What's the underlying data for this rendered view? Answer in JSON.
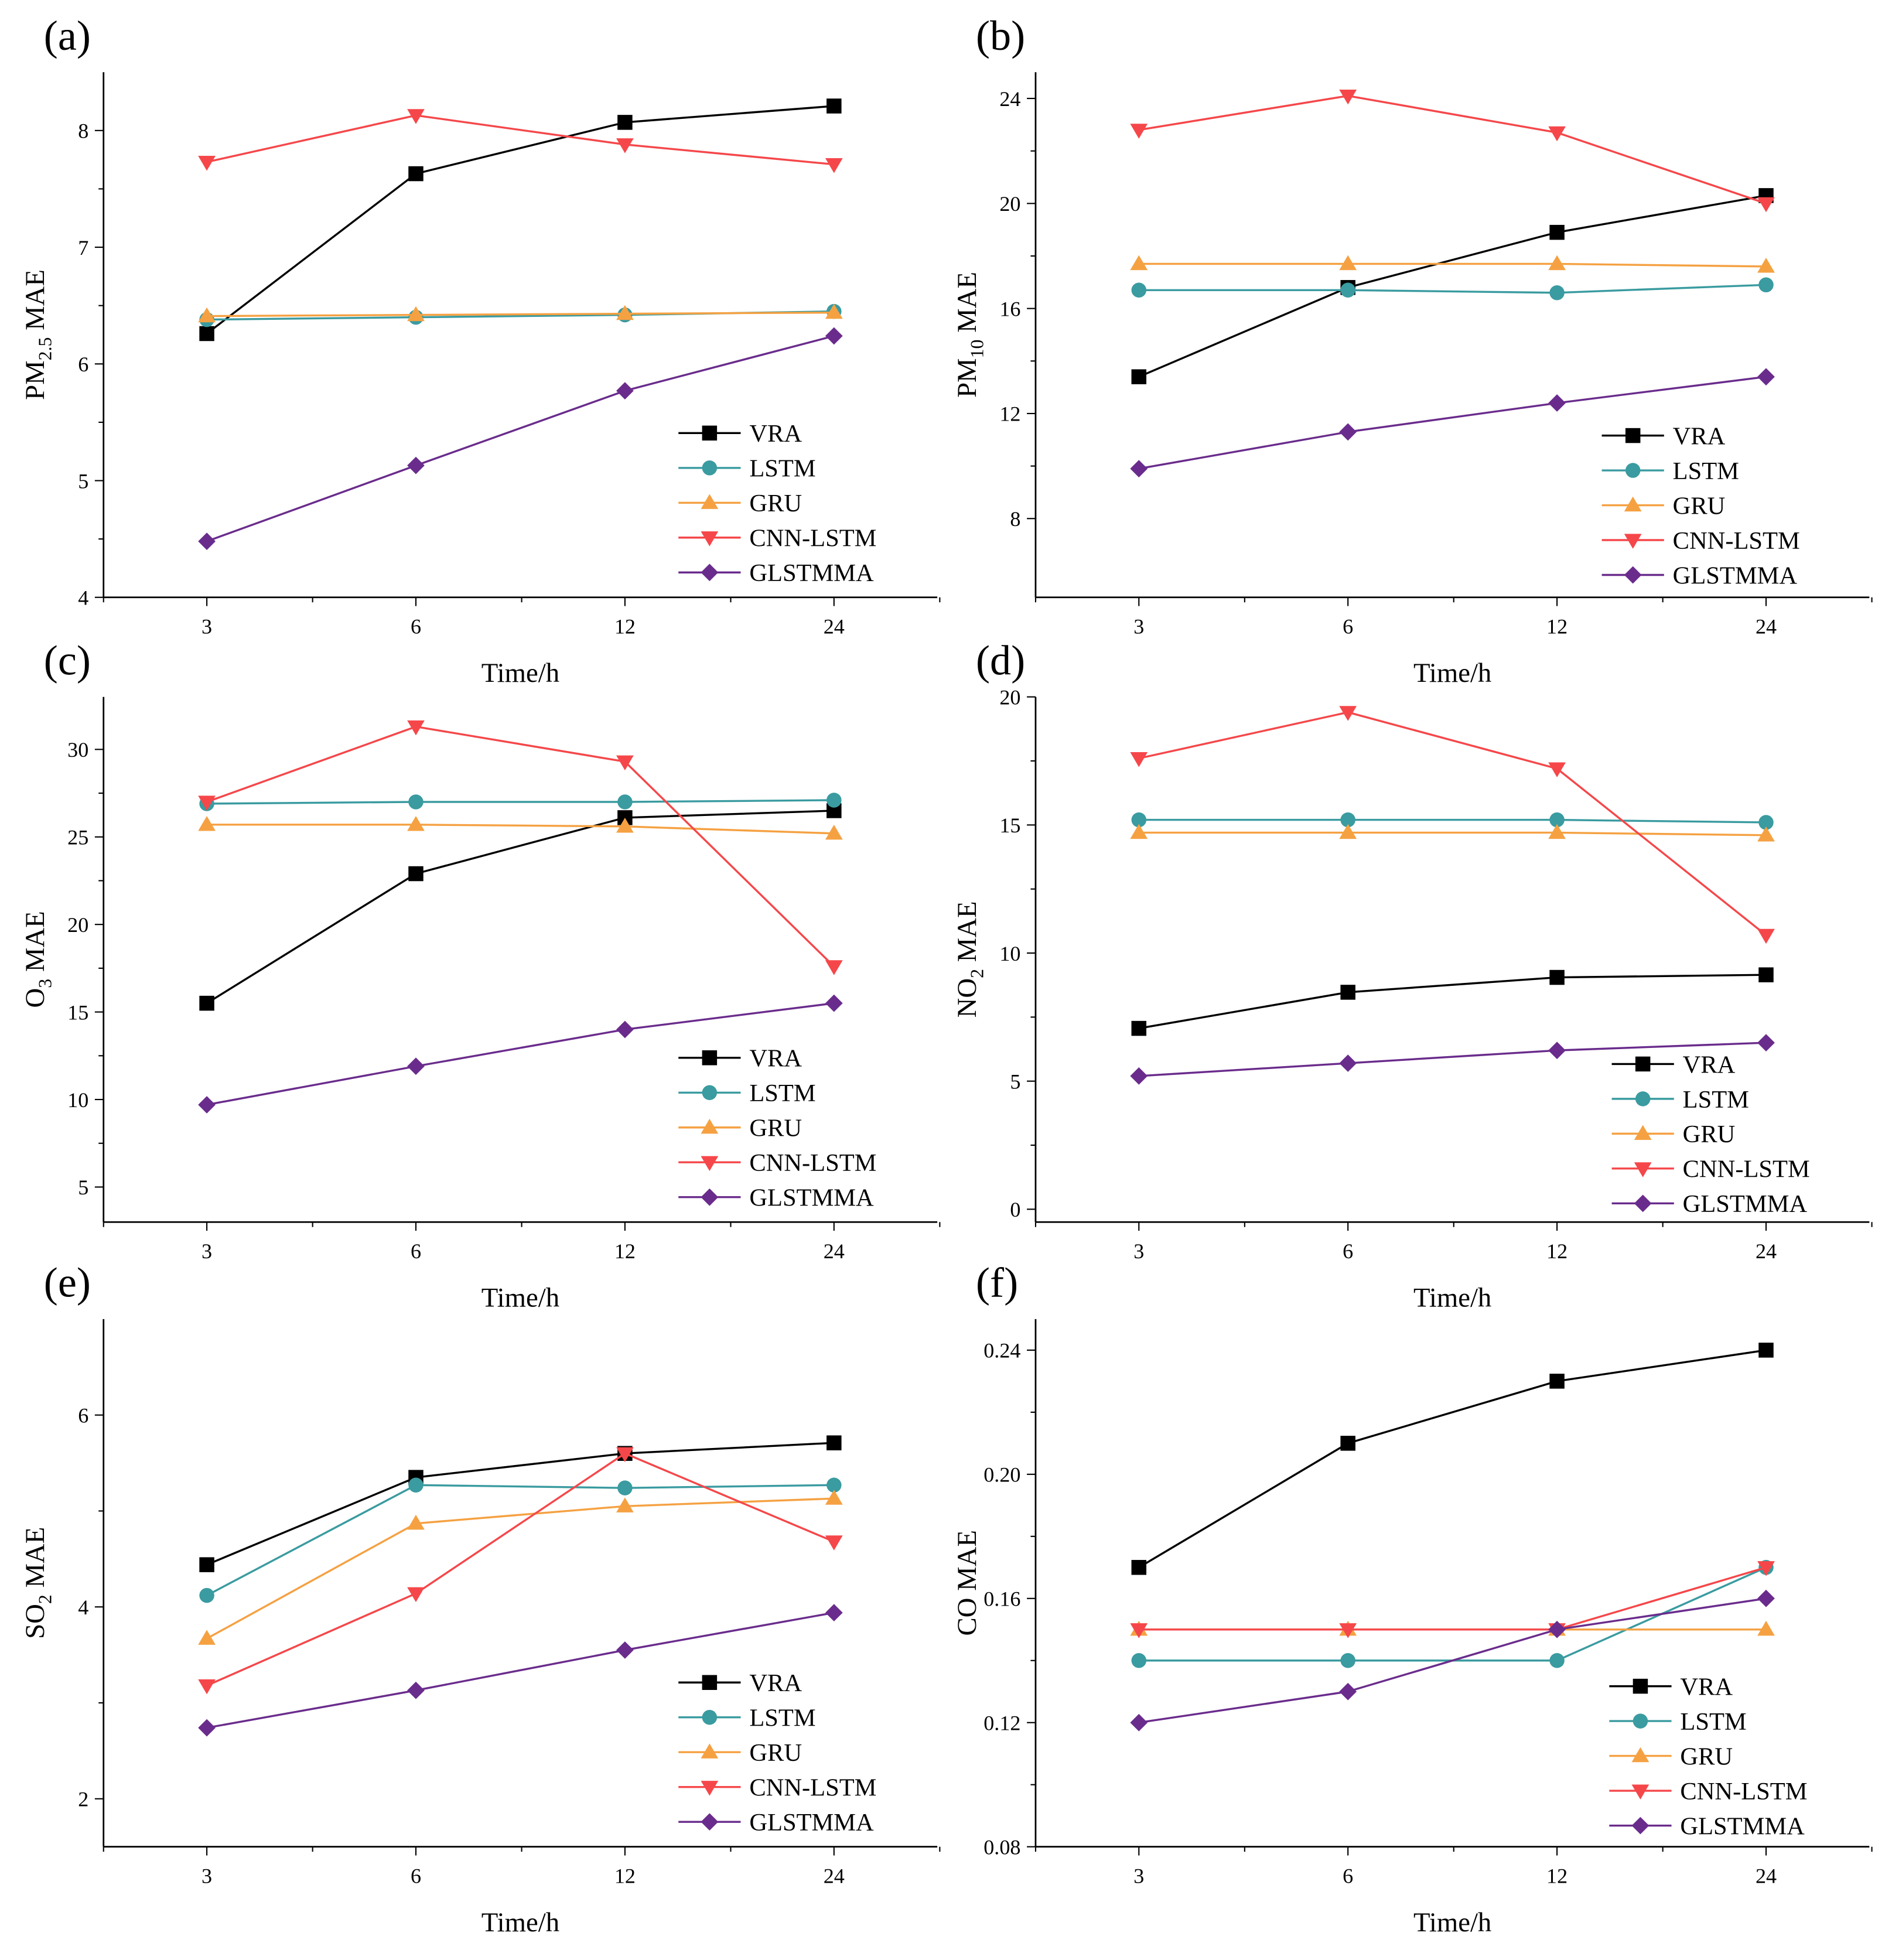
{
  "legend_labels": [
    "VRA",
    "LSTM",
    "GRU",
    "CNN-LSTM",
    "GLSTMMA"
  ],
  "series_colors": {
    "VRA": "#000000",
    "LSTM": "#3a9ba0",
    "GRU": "#f5a142",
    "CNN-LSTM": "#f5474a",
    "GLSTMMA": "#6a2c8c"
  },
  "series_markers": {
    "VRA": "square",
    "LSTM": "circle",
    "GRU": "triangle-up",
    "CNN-LSTM": "triangle-down",
    "GLSTMMA": "diamond"
  },
  "chart_data": [
    {
      "panel": "(a)",
      "type": "line",
      "xlabel": "Time/h",
      "ylabel": {
        "main": "PM",
        "sub": "2.5",
        "rest": " MAE"
      },
      "categories": [
        "3",
        "6",
        "12",
        "24"
      ],
      "ylim": [
        4,
        8.5
      ],
      "yticks": [
        4,
        5,
        6,
        7,
        8
      ],
      "legend": "bottom-right",
      "grid": false,
      "series": [
        {
          "name": "VRA",
          "values": [
            6.26,
            7.63,
            8.07,
            8.21
          ]
        },
        {
          "name": "LSTM",
          "values": [
            6.38,
            6.4,
            6.42,
            6.45
          ]
        },
        {
          "name": "GRU",
          "values": [
            6.41,
            6.42,
            6.43,
            6.44
          ]
        },
        {
          "name": "CNN-LSTM",
          "values": [
            7.73,
            8.13,
            7.88,
            7.71
          ]
        },
        {
          "name": "GLSTMMA",
          "values": [
            4.48,
            5.13,
            5.77,
            6.24
          ]
        }
      ]
    },
    {
      "panel": "(b)",
      "type": "line",
      "xlabel": "Time/h",
      "ylabel": {
        "main": "PM",
        "sub": "10",
        "rest": " MAE"
      },
      "categories": [
        "3",
        "6",
        "12",
        "24"
      ],
      "ylim": [
        5,
        25
      ],
      "yticks": [
        8,
        12,
        16,
        20,
        24
      ],
      "legend": "bottom-right",
      "grid": false,
      "series": [
        {
          "name": "VRA",
          "values": [
            13.4,
            16.8,
            18.9,
            20.3
          ]
        },
        {
          "name": "LSTM",
          "values": [
            16.7,
            16.7,
            16.6,
            16.9
          ]
        },
        {
          "name": "GRU",
          "values": [
            17.7,
            17.7,
            17.7,
            17.6
          ]
        },
        {
          "name": "CNN-LSTM",
          "values": [
            22.8,
            24.1,
            22.7,
            20.0
          ]
        },
        {
          "name": "GLSTMMA",
          "values": [
            9.9,
            11.3,
            12.4,
            13.4
          ]
        }
      ]
    },
    {
      "panel": "(c)",
      "type": "line",
      "xlabel": "Time/h",
      "ylabel": {
        "main": "O",
        "sub": "3",
        "rest": " MAE"
      },
      "categories": [
        "3",
        "6",
        "12",
        "24"
      ],
      "ylim": [
        3,
        33
      ],
      "yticks": [
        5,
        10,
        15,
        20,
        25,
        30
      ],
      "legend": "bottom-right",
      "grid": false,
      "series": [
        {
          "name": "VRA",
          "values": [
            15.5,
            22.9,
            26.1,
            26.5
          ]
        },
        {
          "name": "LSTM",
          "values": [
            26.9,
            27.0,
            27.0,
            27.1
          ]
        },
        {
          "name": "GRU",
          "values": [
            25.7,
            25.7,
            25.6,
            25.2
          ]
        },
        {
          "name": "CNN-LSTM",
          "values": [
            27.0,
            31.3,
            29.3,
            17.6
          ]
        },
        {
          "name": "GLSTMMA",
          "values": [
            9.7,
            11.9,
            14.0,
            15.5
          ]
        }
      ]
    },
    {
      "panel": "(d)",
      "type": "line",
      "xlabel": "Time/h",
      "ylabel": {
        "main": "NO",
        "sub": "2",
        "rest": " MAE"
      },
      "categories": [
        "3",
        "6",
        "12",
        "24"
      ],
      "ylim": [
        -0.5,
        20
      ],
      "yticks": [
        0,
        5,
        10,
        15,
        20
      ],
      "legend": "bottom-right",
      "grid": false,
      "series": [
        {
          "name": "VRA",
          "values": [
            7.06,
            8.47,
            9.05,
            9.15
          ]
        },
        {
          "name": "LSTM",
          "values": [
            15.2,
            15.2,
            15.2,
            15.1
          ]
        },
        {
          "name": "GRU",
          "values": [
            14.7,
            14.7,
            14.7,
            14.6
          ]
        },
        {
          "name": "CNN-LSTM",
          "values": [
            17.6,
            19.4,
            17.2,
            10.7
          ]
        },
        {
          "name": "GLSTMMA",
          "values": [
            5.2,
            5.7,
            6.2,
            6.5
          ]
        }
      ]
    },
    {
      "panel": "(e)",
      "type": "line",
      "xlabel": "Time/h",
      "ylabel": {
        "main": "SO",
        "sub": "2",
        "rest": " MAE"
      },
      "categories": [
        "3",
        "6",
        "12",
        "24"
      ],
      "ylim": [
        1.5,
        7
      ],
      "yticks": [
        2,
        4,
        6
      ],
      "legend": "bottom-right",
      "grid": false,
      "series": [
        {
          "name": "VRA",
          "values": [
            4.44,
            5.35,
            5.6,
            5.71
          ]
        },
        {
          "name": "LSTM",
          "values": [
            4.12,
            5.27,
            5.24,
            5.27
          ]
        },
        {
          "name": "GRU",
          "values": [
            3.67,
            4.87,
            5.05,
            5.13
          ]
        },
        {
          "name": "CNN-LSTM",
          "values": [
            3.18,
            4.14,
            5.6,
            4.68
          ]
        },
        {
          "name": "GLSTMMA",
          "values": [
            2.74,
            3.13,
            3.55,
            3.94
          ]
        }
      ]
    },
    {
      "panel": "(f)",
      "type": "line",
      "xlabel": "Time/h",
      "ylabel": {
        "main": "CO MAE",
        "sub": "",
        "rest": ""
      },
      "categories": [
        "3",
        "6",
        "12",
        "24"
      ],
      "ylim": [
        0.08,
        0.25
      ],
      "yticks": [
        0.08,
        0.12,
        0.16,
        0.2,
        0.24
      ],
      "ytick_labels": [
        "0.08",
        "0.12",
        "0.16",
        "0.20",
        "0.24"
      ],
      "legend": "bottom-right",
      "grid": false,
      "series": [
        {
          "name": "VRA",
          "values": [
            0.17,
            0.21,
            0.23,
            0.24
          ]
        },
        {
          "name": "LSTM",
          "values": [
            0.14,
            0.14,
            0.14,
            0.17
          ]
        },
        {
          "name": "GRU",
          "values": [
            0.15,
            0.15,
            0.15,
            0.15
          ]
        },
        {
          "name": "CNN-LSTM",
          "values": [
            0.15,
            0.15,
            0.15,
            0.17
          ]
        },
        {
          "name": "GLSTMMA",
          "values": [
            0.12,
            0.13,
            0.15,
            0.16
          ]
        }
      ]
    }
  ]
}
